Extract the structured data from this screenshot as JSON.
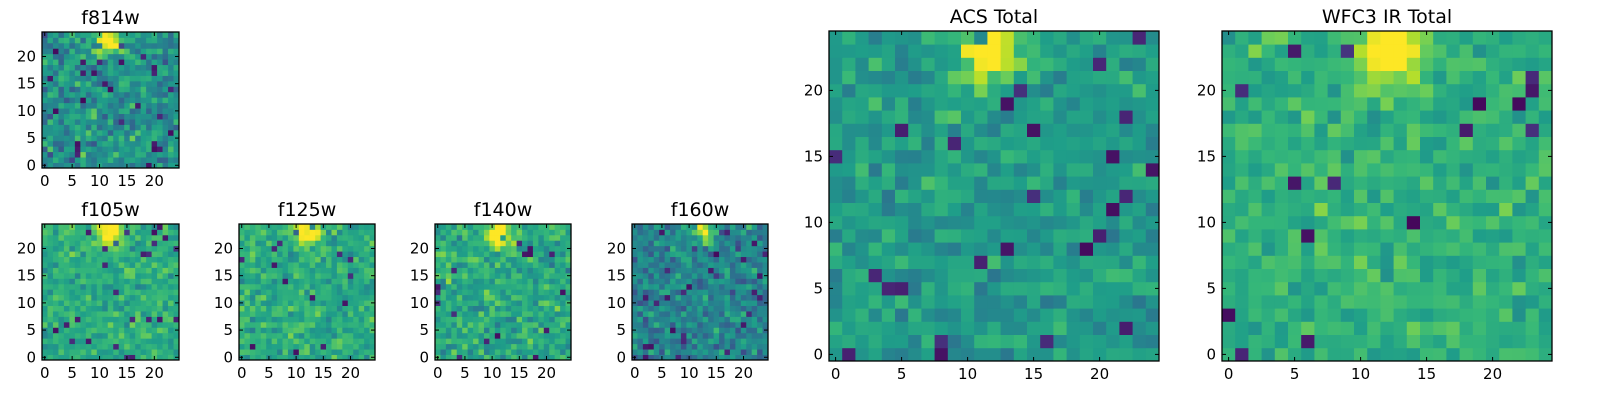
{
  "chart_data": [
    {
      "type": "heatmap",
      "title": "f814w",
      "size": 25,
      "xticks": [
        0,
        5,
        10,
        15,
        20
      ],
      "yticks": [
        0,
        5,
        10,
        15,
        20
      ],
      "xlim": [
        0,
        25
      ],
      "ylim": [
        0,
        25
      ],
      "colormap": "viridis",
      "seed": 11,
      "hotspot": [
        11.5,
        23
      ],
      "mean": 0.5,
      "spread": 0.26
    },
    {
      "type": "heatmap",
      "title": "f105w",
      "size": 25,
      "xticks": [
        0,
        5,
        10,
        15,
        20
      ],
      "yticks": [
        0,
        5,
        10,
        15,
        20
      ],
      "xlim": [
        0,
        25
      ],
      "ylim": [
        0,
        25
      ],
      "colormap": "viridis",
      "seed": 23,
      "hotspot": [
        12,
        23
      ],
      "mean": 0.62,
      "spread": 0.18
    },
    {
      "type": "heatmap",
      "title": "f125w",
      "size": 25,
      "xticks": [
        0,
        5,
        10,
        15,
        20
      ],
      "yticks": [
        0,
        5,
        10,
        15,
        20
      ],
      "xlim": [
        0,
        25
      ],
      "ylim": [
        0,
        25
      ],
      "colormap": "viridis",
      "seed": 37,
      "hotspot": [
        12,
        23
      ],
      "mean": 0.62,
      "spread": 0.2
    },
    {
      "type": "heatmap",
      "title": "f140w",
      "size": 25,
      "xticks": [
        0,
        5,
        10,
        15,
        20
      ],
      "yticks": [
        0,
        5,
        10,
        15,
        20
      ],
      "xlim": [
        0,
        25
      ],
      "ylim": [
        0,
        25
      ],
      "colormap": "viridis",
      "seed": 41,
      "hotspot": [
        11.5,
        22.5
      ],
      "mean": 0.6,
      "spread": 0.21
    },
    {
      "type": "heatmap",
      "title": "f160w",
      "size": 25,
      "xticks": [
        0,
        5,
        10,
        15,
        20
      ],
      "yticks": [
        0,
        5,
        10,
        15,
        20
      ],
      "xlim": [
        0,
        25
      ],
      "ylim": [
        0,
        25
      ],
      "colormap": "viridis",
      "seed": 53,
      "hotspot": [
        12,
        23
      ],
      "mean": 0.45,
      "spread": 0.24
    },
    {
      "type": "heatmap",
      "title": "ACS Total",
      "size": 25,
      "xticks": [
        0,
        5,
        10,
        15,
        20
      ],
      "yticks": [
        0,
        5,
        10,
        15,
        20
      ],
      "xlim": [
        0,
        25
      ],
      "ylim": [
        0,
        25
      ],
      "colormap": "viridis",
      "seed": 67,
      "hotspot": [
        11.5,
        23
      ],
      "mean": 0.55,
      "spread": 0.17
    },
    {
      "type": "heatmap",
      "title": "WFC3 IR Total",
      "size": 25,
      "xticks": [
        0,
        5,
        10,
        15,
        20
      ],
      "yticks": [
        0,
        5,
        10,
        15,
        20
      ],
      "xlim": [
        0,
        25
      ],
      "ylim": [
        0,
        25
      ],
      "colormap": "viridis",
      "seed": 79,
      "hotspot": [
        12,
        23
      ],
      "mean": 0.64,
      "spread": 0.15
    }
  ]
}
